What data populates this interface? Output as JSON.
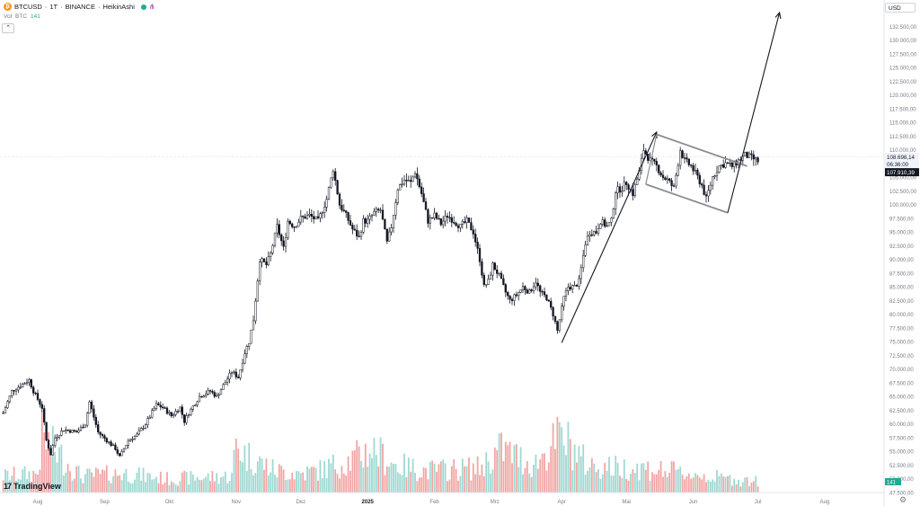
{
  "header": {
    "symbol": "BTCUSD",
    "coin_glyph": "₿",
    "resolution": "1T",
    "exchange": "BINANCE",
    "chart_style": "HeikinAshi",
    "separator": "·",
    "share_icon": "share-icon"
  },
  "volume_legend": {
    "label": "Vol",
    "currency": "BTC",
    "value": "141"
  },
  "collapse_icon": "⌃",
  "currency_button": "USD",
  "logo_text": "TradingView",
  "logo_mark": "17",
  "settings_icon": "⚙",
  "colors": {
    "up": "#26a69a",
    "down": "#ef5350",
    "vol_up": "#9fd8d1",
    "vol_down": "#f2a5a3",
    "candle": "#131722",
    "channel": "#8a8d94",
    "arrow": "#131722",
    "price_tag_dark": "#131722",
    "accent_orange": "#f7931a",
    "live_green": "#22ab94"
  },
  "chart_data": {
    "type": "candlestick",
    "title": "BTCUSD · 1T · BINANCE · HeikinAshi",
    "ylim": [
      47500,
      135000
    ],
    "y_ticks": [
      "47.500,00",
      "50.000,00",
      "52.500,00",
      "55.000,00",
      "57.500,00",
      "60.000,00",
      "62.500,00",
      "65.000,00",
      "67.500,00",
      "70.000,00",
      "72.500,00",
      "75.000,00",
      "77.500,00",
      "80.000,00",
      "82.500,00",
      "85.000,00",
      "87.500,00",
      "90.000,00",
      "92.500,00",
      "95.000,00",
      "97.500,00",
      "100.000,00",
      "102.500,00",
      "105.000,00",
      "107.500,00",
      "110.000,00",
      "112.500,00",
      "115.000,00",
      "117.500,00",
      "120.000,00",
      "122.500,00",
      "125.000,00",
      "127.500,00",
      "130.000,00",
      "132.500,00"
    ],
    "y_tick_values": [
      47500,
      50000,
      52500,
      55000,
      57500,
      60000,
      62500,
      65000,
      67500,
      70000,
      72500,
      75000,
      77500,
      80000,
      82500,
      85000,
      87500,
      90000,
      92500,
      95000,
      97500,
      100000,
      102500,
      105000,
      107500,
      110000,
      112500,
      115000,
      117500,
      120000,
      122500,
      125000,
      127500,
      130000,
      132500
    ],
    "x_axis": [
      "Aug",
      "Sep",
      "Okt",
      "Nov",
      "Dez",
      "2025",
      "Feb",
      "Mrz",
      "Apr",
      "Mai",
      "Jun",
      "Jul",
      "Aug"
    ],
    "x_axis_days": [
      0,
      31,
      61,
      92,
      122,
      153,
      184,
      212,
      243,
      273,
      304,
      334,
      365
    ],
    "series_days_from_Aug_1": [
      -16,
      334
    ],
    "close_anchors": [
      [
        -16,
        62000
      ],
      [
        -12,
        66000
      ],
      [
        -8,
        67000
      ],
      [
        -4,
        68000
      ],
      [
        -2,
        66000
      ],
      [
        2,
        63000
      ],
      [
        4,
        57000
      ],
      [
        6,
        54500
      ],
      [
        8,
        57500
      ],
      [
        12,
        59000
      ],
      [
        18,
        58500
      ],
      [
        22,
        60000
      ],
      [
        24,
        64000
      ],
      [
        28,
        58500
      ],
      [
        32,
        57000
      ],
      [
        36,
        55500
      ],
      [
        38,
        54000
      ],
      [
        42,
        57000
      ],
      [
        46,
        58000
      ],
      [
        50,
        60000
      ],
      [
        55,
        63500
      ],
      [
        58,
        63000
      ],
      [
        62,
        61500
      ],
      [
        66,
        63000
      ],
      [
        68,
        60500
      ],
      [
        70,
        62000
      ],
      [
        75,
        65000
      ],
      [
        80,
        66000
      ],
      [
        83,
        65000
      ],
      [
        86,
        67000
      ],
      [
        90,
        69500
      ],
      [
        93,
        68500
      ],
      [
        96,
        73000
      ],
      [
        98,
        75000
      ],
      [
        100,
        79000
      ],
      [
        103,
        90000
      ],
      [
        106,
        89000
      ],
      [
        108,
        91000
      ],
      [
        111,
        96000
      ],
      [
        114,
        92000
      ],
      [
        116,
        97000
      ],
      [
        119,
        96000
      ],
      [
        122,
        97500
      ],
      [
        126,
        98000
      ],
      [
        130,
        97000
      ],
      [
        134,
        101000
      ],
      [
        137,
        106500
      ],
      [
        140,
        100000
      ],
      [
        143,
        98000
      ],
      [
        146,
        95500
      ],
      [
        149,
        94000
      ],
      [
        151,
        97000
      ],
      [
        153,
        97000
      ],
      [
        156,
        98500
      ],
      [
        159,
        99000
      ],
      [
        162,
        93000
      ],
      [
        164,
        96000
      ],
      [
        167,
        103000
      ],
      [
        170,
        104500
      ],
      [
        173,
        104000
      ],
      [
        175,
        106000
      ],
      [
        178,
        102000
      ],
      [
        181,
        97000
      ],
      [
        184,
        98000
      ],
      [
        187,
        96500
      ],
      [
        190,
        98000
      ],
      [
        193,
        97000
      ],
      [
        196,
        96000
      ],
      [
        199,
        97000
      ],
      [
        202,
        95000
      ],
      [
        205,
        90000
      ],
      [
        207,
        85000
      ],
      [
        209,
        86000
      ],
      [
        211,
        89000
      ],
      [
        214,
        87000
      ],
      [
        217,
        84000
      ],
      [
        219,
        82500
      ],
      [
        222,
        83500
      ],
      [
        225,
        85000
      ],
      [
        228,
        84000
      ],
      [
        231,
        86000
      ],
      [
        233,
        84000
      ],
      [
        236,
        83000
      ],
      [
        239,
        80000
      ],
      [
        241,
        77000
      ],
      [
        244,
        83000
      ],
      [
        246,
        85000
      ],
      [
        249,
        85000
      ],
      [
        251,
        86000
      ],
      [
        254,
        93000
      ],
      [
        256,
        95000
      ],
      [
        259,
        95000
      ],
      [
        261,
        97000
      ],
      [
        264,
        96000
      ],
      [
        266,
        97000
      ],
      [
        268,
        102500
      ],
      [
        271,
        103000
      ],
      [
        273,
        104000
      ],
      [
        276,
        102000
      ],
      [
        279,
        106000
      ],
      [
        281,
        110000
      ],
      [
        284,
        108000
      ],
      [
        287,
        107000
      ],
      [
        290,
        105000
      ],
      [
        292,
        104500
      ],
      [
        295,
        103000
      ],
      [
        298,
        110000
      ],
      [
        300,
        108000
      ],
      [
        303,
        107000
      ],
      [
        306,
        105000
      ],
      [
        308,
        103500
      ],
      [
        310,
        101000
      ],
      [
        313,
        105000
      ],
      [
        316,
        107000
      ],
      [
        319,
        107500
      ],
      [
        322,
        107000
      ],
      [
        325,
        108000
      ],
      [
        328,
        109000
      ],
      [
        331,
        108500
      ],
      [
        334,
        107900
      ]
    ],
    "volume_anchors": [
      [
        -16,
        0.3
      ],
      [
        0,
        0.35
      ],
      [
        2,
        1.0
      ],
      [
        20,
        0.3
      ],
      [
        40,
        0.35
      ],
      [
        60,
        0.25
      ],
      [
        90,
        0.3
      ],
      [
        92,
        0.9
      ],
      [
        96,
        0.7
      ],
      [
        110,
        0.4
      ],
      [
        122,
        0.35
      ],
      [
        130,
        0.4
      ],
      [
        146,
        0.6
      ],
      [
        155,
        0.8
      ],
      [
        166,
        0.5
      ],
      [
        180,
        0.4
      ],
      [
        205,
        0.45
      ],
      [
        215,
        0.8
      ],
      [
        230,
        0.5
      ],
      [
        242,
        1.0
      ],
      [
        246,
        0.9
      ],
      [
        255,
        0.5
      ],
      [
        270,
        0.45
      ],
      [
        280,
        0.45
      ],
      [
        300,
        0.35
      ],
      [
        320,
        0.25
      ],
      [
        334,
        0.2
      ]
    ],
    "price_scale_tags": [
      {
        "label": "108.698,14",
        "value": 108698,
        "style": "light"
      },
      {
        "label": "06:36:00",
        "value": 107400,
        "style": "light"
      },
      {
        "label": "107.910,39",
        "value": 105900,
        "style": "dark"
      }
    ],
    "volume_tag": "141",
    "drawings": {
      "impulse_arrow": [
        [
          243,
          74800
        ],
        [
          287,
          113200
        ]
      ],
      "channel_upper": [
        [
          287,
          112800
        ],
        [
          329,
          107000
        ]
      ],
      "channel_lower": [
        [
          282,
          103700
        ],
        [
          320,
          98500
        ]
      ],
      "breakout_arrow": [
        [
          320,
          98500
        ],
        [
          344,
          135000
        ]
      ]
    }
  }
}
